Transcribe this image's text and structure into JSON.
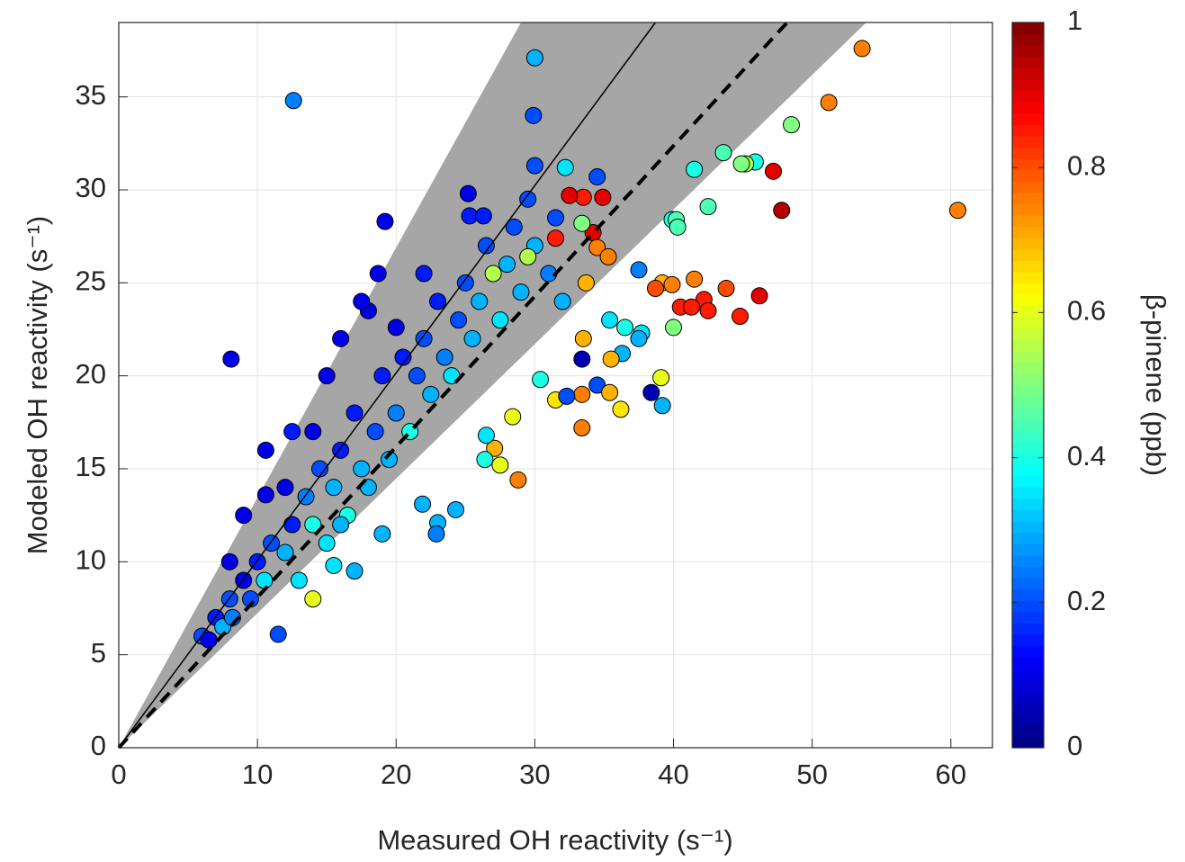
{
  "chart_data": {
    "type": "scatter",
    "xlabel": "Measured OH reactivity (s⁻¹)",
    "ylabel": "Modeled OH reactivity (s⁻¹)",
    "colorbar_label": "β-pinene (ppb)",
    "colormap": "jet",
    "clim": [
      0,
      1
    ],
    "cticks": [
      0,
      0.2,
      0.4,
      0.6,
      0.8,
      1
    ],
    "xlim": [
      0,
      63
    ],
    "ylim": [
      0,
      39
    ],
    "xticks": [
      0,
      10,
      20,
      30,
      40,
      50,
      60
    ],
    "yticks": [
      0,
      5,
      10,
      15,
      20,
      25,
      30,
      35
    ],
    "grid": true,
    "band_x": [
      0,
      29,
      53.9
    ],
    "band_y": [
      0,
      39,
      39
    ],
    "one_to_one_x": [
      0,
      38.7
    ],
    "one_to_one_y": [
      0,
      39
    ],
    "fit_x": [
      0,
      48.2
    ],
    "fit_y": [
      0,
      39
    ],
    "x": [
      6,
      6.5,
      7,
      7.5,
      8,
      8.2,
      9,
      9.5,
      10,
      10.5,
      11,
      11.5,
      12,
      12.5,
      13,
      13.5,
      14,
      14.5,
      15,
      15.5,
      16,
      16.5,
      17,
      17.5,
      18,
      18.5,
      19,
      19.5,
      20,
      20.5,
      21,
      21.5,
      22,
      22.5,
      23,
      23.5,
      24,
      24.5,
      25,
      25.5,
      26,
      26.5,
      27,
      27.5,
      28,
      28.5,
      29,
      29.5,
      30,
      31,
      31.5,
      32,
      20,
      18,
      16,
      17.5,
      22,
      15,
      14,
      12,
      9,
      8,
      17,
      15.5,
      14,
      19,
      16,
      12.6,
      30,
      29.9,
      30,
      32.2,
      34.5,
      8.1,
      19.2,
      18.7,
      12.5,
      10.6,
      10.6,
      53.6,
      51.2,
      48.5,
      43.6,
      45.9,
      45.2,
      44.9,
      41.5,
      47.2,
      47.8,
      60.5,
      42.5,
      39.9,
      40.2,
      40.3,
      37.5,
      41.5,
      39.2,
      39.9,
      38.7,
      43.8,
      46.2,
      42.2,
      40.5,
      41.3,
      42.5,
      44.8,
      40,
      37.7,
      36.5,
      37.5,
      35.4,
      36.3,
      33.5,
      35.5,
      33.4,
      34.5,
      33.4,
      35.4,
      38.4,
      39.1,
      39.2,
      36.2,
      31.5,
      32.3,
      30.4,
      33.4,
      28.4,
      28.8,
      27.5,
      27.1,
      26.4,
      26.5,
      24.3,
      23,
      22.9,
      21.9,
      33.5,
      32.5,
      34.9,
      31.5,
      34.2,
      33.4,
      34.5,
      35.3,
      33.7,
      29.5,
      25.2,
      25.3,
      26.3
    ],
    "y": [
      6,
      5.8,
      7,
      6.5,
      8,
      7,
      9,
      8,
      10,
      9,
      11,
      6.1,
      10.5,
      12,
      9,
      13.5,
      12,
      15,
      11,
      14,
      16,
      12.5,
      18,
      15,
      14,
      17,
      20,
      15.5,
      18,
      21,
      17,
      20,
      22,
      19,
      24,
      21,
      20,
      23,
      25,
      22,
      24,
      27,
      25.5,
      23,
      26,
      28,
      24.5,
      29.5,
      27,
      25.5,
      28.5,
      24,
      22.6,
      23.5,
      22,
      24,
      25.5,
      20,
      17,
      14,
      12.5,
      10,
      9.5,
      9.8,
      8,
      11.5,
      12,
      34.8,
      37.1,
      34,
      31.3,
      31.2,
      30.7,
      20.9,
      28.3,
      25.5,
      17,
      16,
      13.6,
      37.6,
      34.7,
      33.5,
      32,
      31.5,
      31.4,
      31.4,
      31.1,
      31,
      28.9,
      28.9,
      29.1,
      28.4,
      28.4,
      28,
      25.7,
      25.2,
      25,
      24.9,
      24.7,
      24.7,
      24.3,
      24.1,
      23.7,
      23.7,
      23.5,
      23.2,
      22.6,
      22.3,
      22.6,
      22,
      23,
      21.2,
      22,
      20.9,
      20.9,
      19.5,
      19,
      19.1,
      19.1,
      19.9,
      18.4,
      18.2,
      18.7,
      18.9,
      19.8,
      17.2,
      17.8,
      14.4,
      15.2,
      16.1,
      15.5,
      16.8,
      12.8,
      12.1,
      11.5,
      13.1,
      29.6,
      29.7,
      29.6,
      27.4,
      27.7,
      28.2,
      26.9,
      26.4,
      25,
      26.4,
      29.8,
      28.6,
      28.6
    ],
    "color_values": [
      0.2,
      0.1,
      0.15,
      0.3,
      0.2,
      0.25,
      0.1,
      0.2,
      0.15,
      0.35,
      0.2,
      0.2,
      0.3,
      0.15,
      0.35,
      0.25,
      0.4,
      0.2,
      0.35,
      0.3,
      0.15,
      0.4,
      0.15,
      0.3,
      0.3,
      0.2,
      0.15,
      0.3,
      0.25,
      0.15,
      0.4,
      0.2,
      0.2,
      0.3,
      0.15,
      0.25,
      0.35,
      0.2,
      0.2,
      0.3,
      0.3,
      0.2,
      0.55,
      0.35,
      0.3,
      0.2,
      0.3,
      0.2,
      0.3,
      0.25,
      0.2,
      0.3,
      0.1,
      0.1,
      0.1,
      0.1,
      0.15,
      0.1,
      0.1,
      0.1,
      0.1,
      0.1,
      0.3,
      0.35,
      0.6,
      0.3,
      0.3,
      0.25,
      0.3,
      0.2,
      0.2,
      0.35,
      0.2,
      0.1,
      0.1,
      0.1,
      0.15,
      0.1,
      0.1,
      0.75,
      0.75,
      0.5,
      0.45,
      0.4,
      0.55,
      0.5,
      0.4,
      0.9,
      0.95,
      0.75,
      0.45,
      0.4,
      0.45,
      0.45,
      0.25,
      0.75,
      0.7,
      0.75,
      0.8,
      0.8,
      0.9,
      0.85,
      0.85,
      0.85,
      0.85,
      0.85,
      0.5,
      0.35,
      0.4,
      0.3,
      0.35,
      0.3,
      0.7,
      0.7,
      0.05,
      0.2,
      0.75,
      0.7,
      0.05,
      0.6,
      0.3,
      0.65,
      0.65,
      0.2,
      0.4,
      0.75,
      0.6,
      0.75,
      0.6,
      0.7,
      0.4,
      0.35,
      0.3,
      0.3,
      0.25,
      0.3,
      0.85,
      0.9,
      0.9,
      0.85,
      0.9,
      0.5,
      0.75,
      0.75,
      0.7,
      0.55,
      0.1,
      0.15,
      0.15
    ]
  }
}
